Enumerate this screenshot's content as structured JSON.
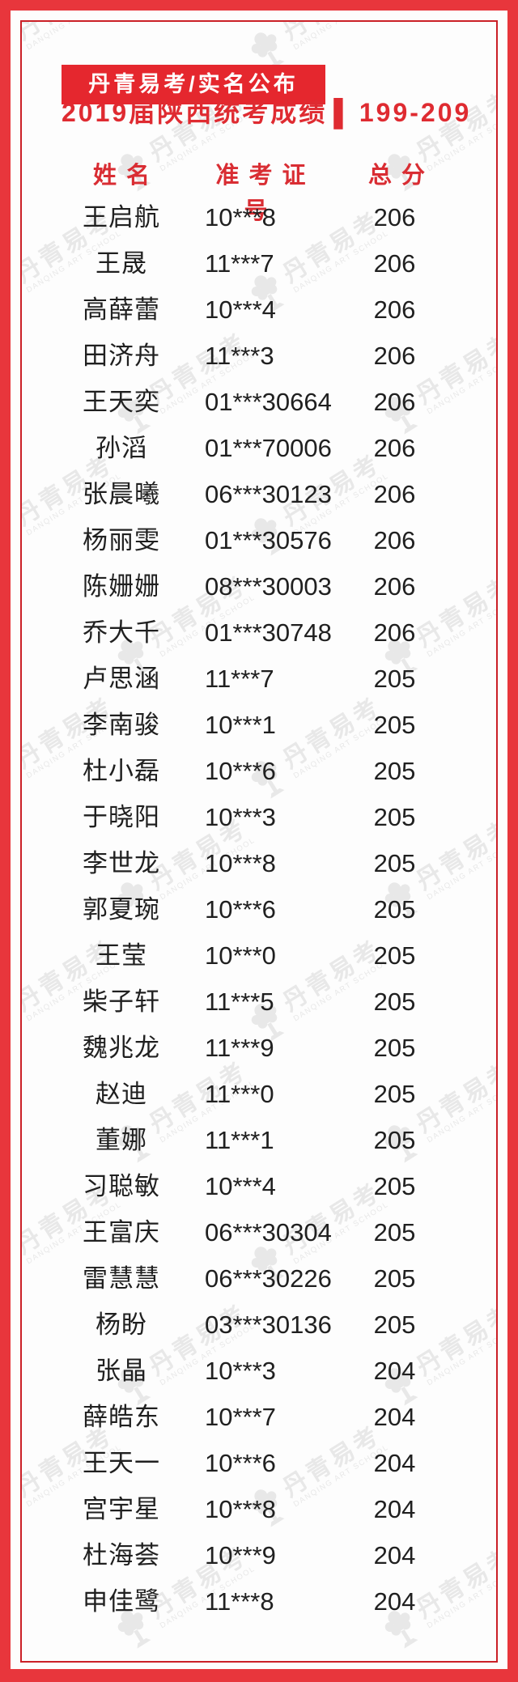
{
  "header": {
    "banner": "丹青易考/实名公布",
    "subtitle_title": "2019届陕西统考成绩",
    "subtitle_divider": "▌",
    "subtitle_range": "199-209"
  },
  "watermark": {
    "cn": "丹青易考",
    "en": "DANQING ART SCHOOL",
    "icon": "tree-logo"
  },
  "colors": {
    "frame_red": "#e8363c",
    "banner_red": "#e5272e",
    "inner_border_red": "#cb2027",
    "accent_text_red": "#d92d33",
    "body_text": "#202020",
    "watermark_gray": "#e8e8e8",
    "banner_text": "#ffffff"
  },
  "table": {
    "columns": [
      "姓名",
      "准考证号",
      "总分"
    ],
    "rows": [
      {
        "name": "王启航",
        "id": "10***8",
        "score": "206"
      },
      {
        "name": "王晟",
        "id": "11***7",
        "score": "206"
      },
      {
        "name": "高薛蕾",
        "id": "10***4",
        "score": "206"
      },
      {
        "name": "田济舟",
        "id": "11***3",
        "score": "206"
      },
      {
        "name": "王天奕",
        "id": "01***30664",
        "score": "206"
      },
      {
        "name": "孙滔",
        "id": "01***70006",
        "score": "206"
      },
      {
        "name": "张晨曦",
        "id": "06***30123",
        "score": "206"
      },
      {
        "name": "杨丽雯",
        "id": "01***30576",
        "score": "206"
      },
      {
        "name": "陈姗姗",
        "id": "08***30003",
        "score": "206"
      },
      {
        "name": "乔大千",
        "id": "01***30748",
        "score": "206"
      },
      {
        "name": "卢思涵",
        "id": "11***7",
        "score": "205"
      },
      {
        "name": "李南骏",
        "id": "10***1",
        "score": "205"
      },
      {
        "name": "杜小磊",
        "id": "10***6",
        "score": "205"
      },
      {
        "name": "于晓阳",
        "id": "10***3",
        "score": "205"
      },
      {
        "name": "李世龙",
        "id": "10***8",
        "score": "205"
      },
      {
        "name": "郭夏琬",
        "id": "10***6",
        "score": "205"
      },
      {
        "name": "王莹",
        "id": "10***0",
        "score": "205"
      },
      {
        "name": "柴子轩",
        "id": "11***5",
        "score": "205"
      },
      {
        "name": "魏兆龙",
        "id": "11***9",
        "score": "205"
      },
      {
        "name": "赵迪",
        "id": "11***0",
        "score": "205"
      },
      {
        "name": "董娜",
        "id": "11***1",
        "score": "205"
      },
      {
        "name": "习聪敏",
        "id": "10***4",
        "score": "205"
      },
      {
        "name": "王富庆",
        "id": "06***30304",
        "score": "205"
      },
      {
        "name": "雷慧慧",
        "id": "06***30226",
        "score": "205"
      },
      {
        "name": "杨盼",
        "id": "03***30136",
        "score": "205"
      },
      {
        "name": "张晶",
        "id": "10***3",
        "score": "204"
      },
      {
        "name": "薛皓东",
        "id": "10***7",
        "score": "204"
      },
      {
        "name": "王天一",
        "id": "10***6",
        "score": "204"
      },
      {
        "name": "宫宇星",
        "id": "10***8",
        "score": "204"
      },
      {
        "name": "杜海荟",
        "id": "10***9",
        "score": "204"
      },
      {
        "name": "申佳鹭",
        "id": "11***8",
        "score": "204"
      }
    ]
  }
}
